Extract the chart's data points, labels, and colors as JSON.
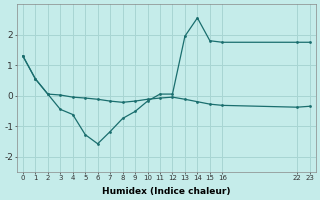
{
  "xlabel": "Humidex (Indice chaleur)",
  "background_color": "#c5ecea",
  "grid_color": "#a8d5d3",
  "line_color": "#1a6e6e",
  "line1_x": [
    0,
    1,
    2,
    3,
    4,
    5,
    6,
    7,
    8,
    9,
    10,
    11,
    12,
    13,
    14,
    15,
    16,
    22,
    23
  ],
  "line1_y": [
    1.3,
    0.55,
    0.05,
    0.02,
    -0.05,
    -0.08,
    -0.12,
    -0.18,
    -0.22,
    -0.18,
    -0.12,
    -0.08,
    -0.05,
    -0.12,
    -0.2,
    -0.28,
    -0.32,
    -0.38,
    -0.35
  ],
  "line2_x": [
    0,
    1,
    2,
    3,
    4,
    5,
    6,
    7,
    8,
    9,
    10,
    11,
    12,
    13,
    14,
    15,
    16,
    22,
    23
  ],
  "line2_y": [
    1.3,
    0.55,
    0.05,
    -0.45,
    -0.62,
    -1.28,
    -1.58,
    -1.18,
    -0.75,
    -0.52,
    -0.18,
    0.05,
    0.05,
    1.95,
    2.55,
    1.8,
    1.75,
    1.75,
    1.75
  ],
  "ylim": [
    -2.5,
    3.0
  ],
  "yticks": [
    -2,
    -1,
    0,
    1,
    2
  ],
  "xtick_pos": [
    0,
    1,
    2,
    3,
    4,
    5,
    6,
    7,
    8,
    9,
    10,
    11,
    12,
    13,
    14,
    15,
    16,
    22,
    23
  ],
  "xtick_labels": [
    "0",
    "1",
    "2",
    "3",
    "4",
    "5",
    "6",
    "7",
    "8",
    "9",
    "10",
    "11",
    "12",
    "13",
    "14",
    "15",
    "16",
    "22",
    "23"
  ],
  "xlim": [
    -0.5,
    23.5
  ]
}
